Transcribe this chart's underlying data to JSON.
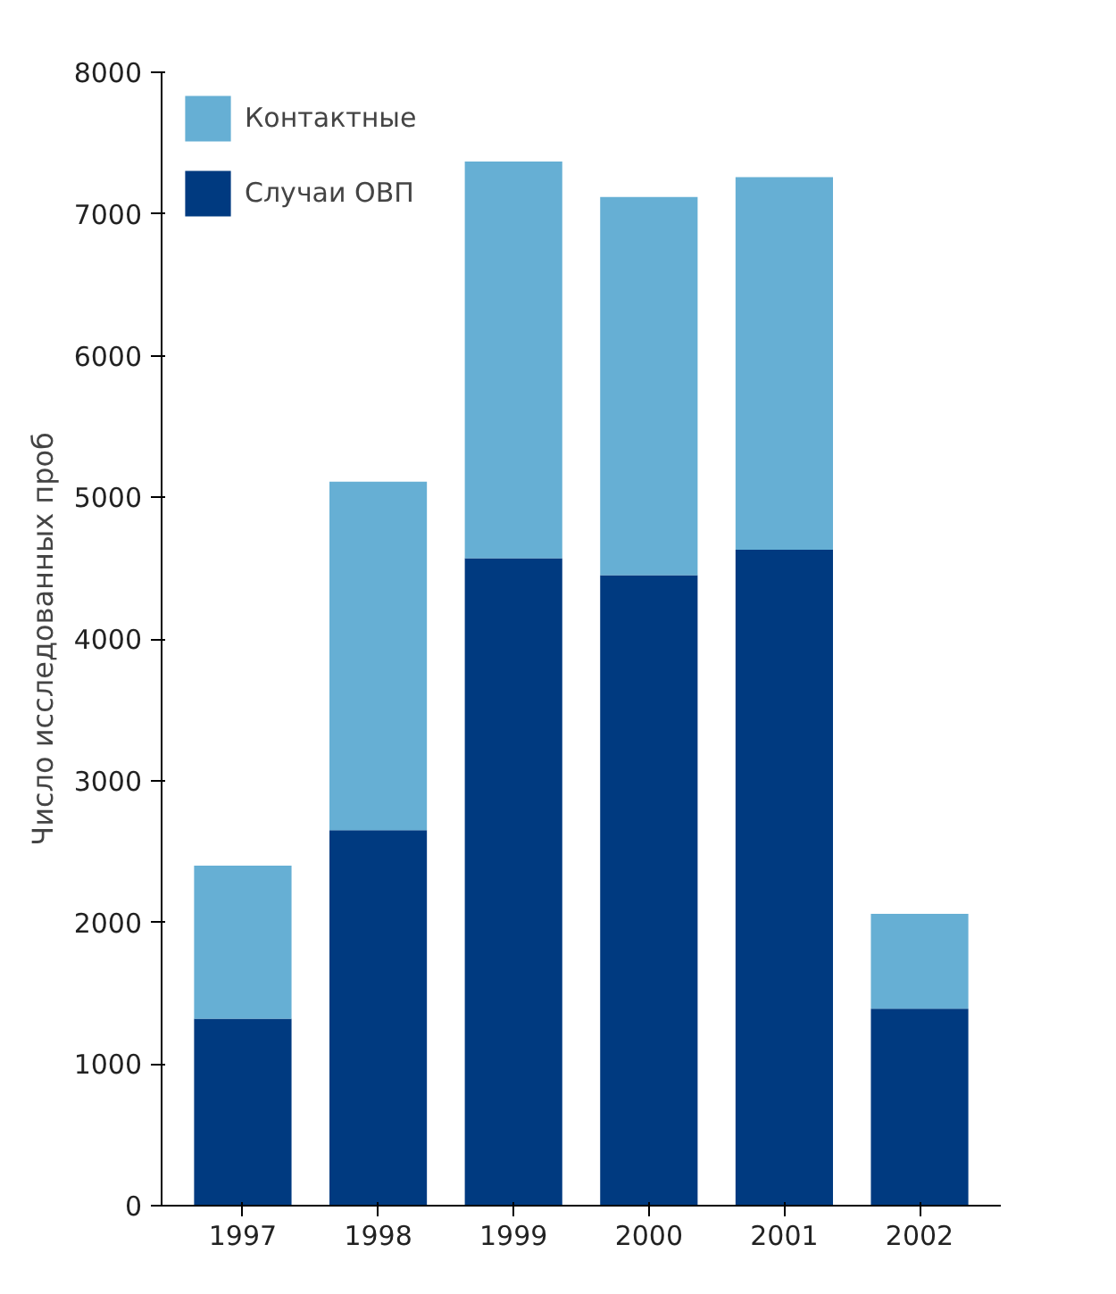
{
  "chart_data": {
    "type": "bar",
    "stacked": true,
    "ylabel": "Число исследованных проб",
    "categories": [
      "1997",
      "1998",
      "1999",
      "2000",
      "2001",
      "2002"
    ],
    "series": [
      {
        "name": "Случаи ОВП",
        "color": "#003a80",
        "values": [
          1320,
          2650,
          4570,
          4450,
          4630,
          1390
        ]
      },
      {
        "name": "Контактные",
        "color": "#66afd4",
        "values": [
          1080,
          2460,
          2800,
          2670,
          2630,
          670
        ]
      }
    ],
    "ylim": [
      0,
      8000
    ],
    "yticks": [
      0,
      1000,
      2000,
      3000,
      4000,
      5000,
      6000,
      7000,
      8000
    ],
    "grid": false,
    "legend": "top left"
  }
}
